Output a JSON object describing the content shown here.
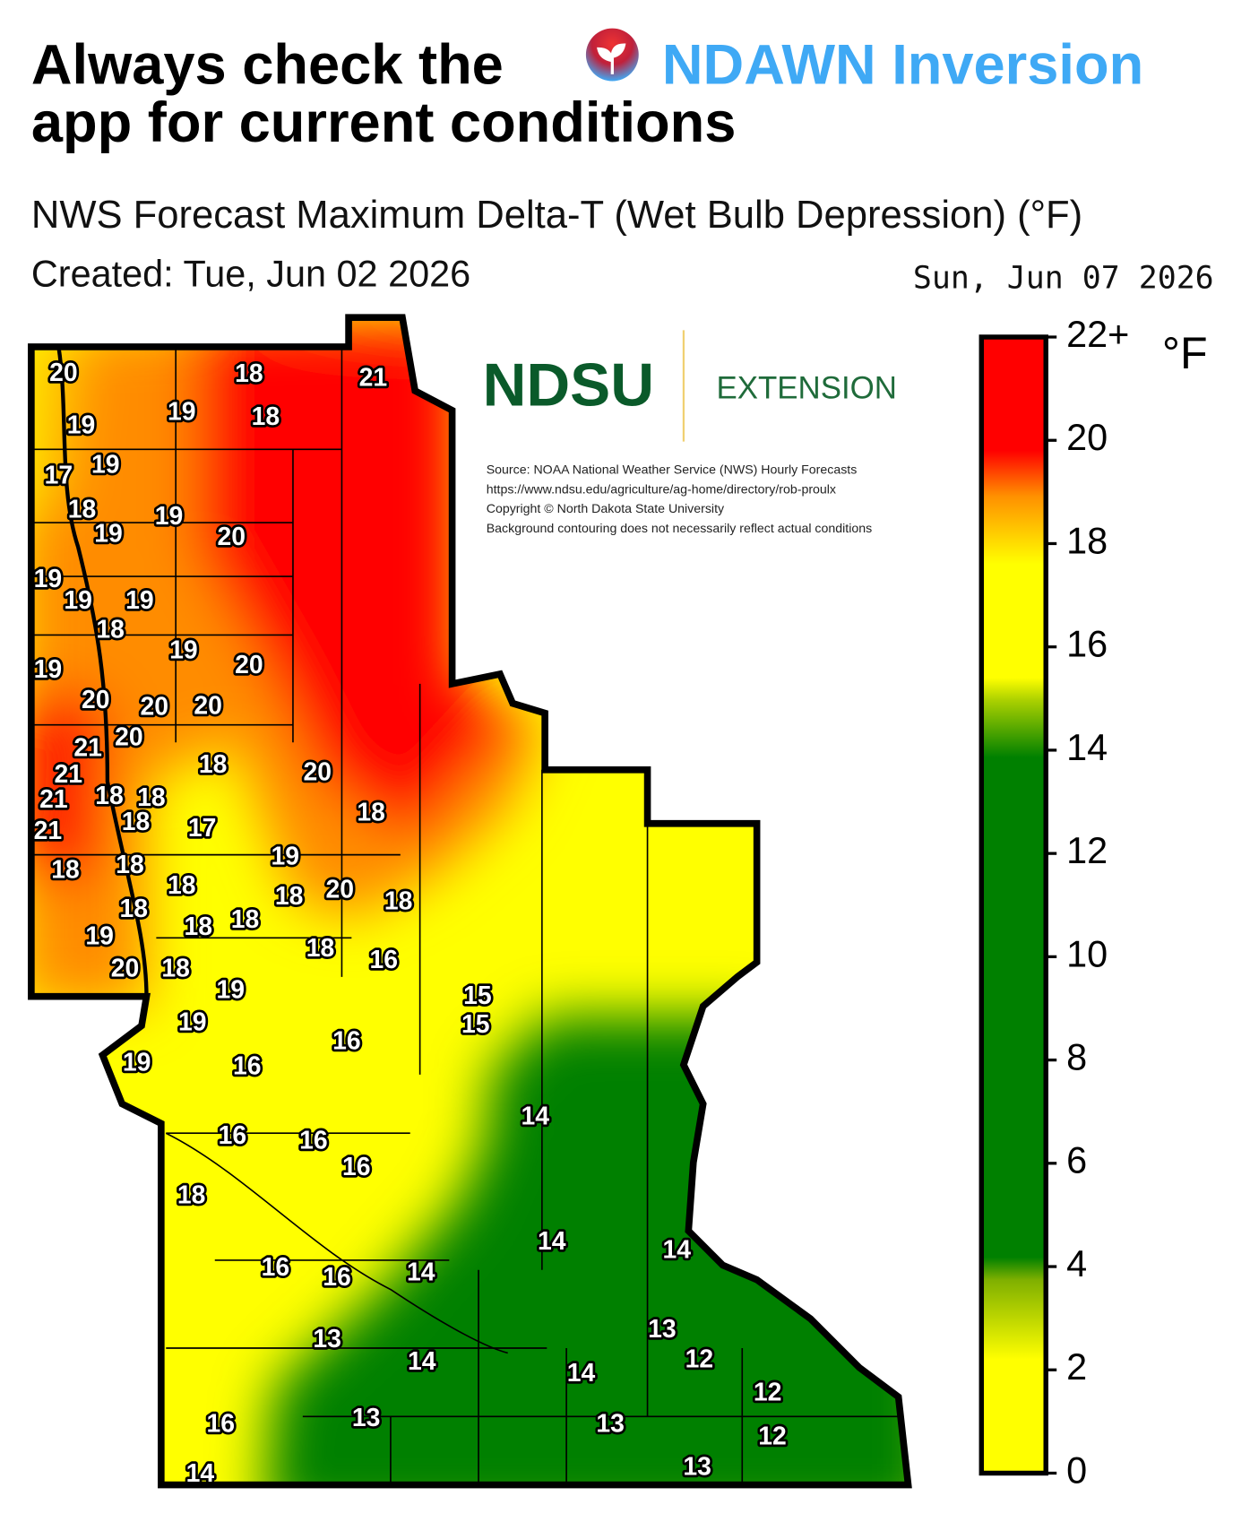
{
  "header": {
    "title_before": "Always check the",
    "title_link": "NDAWN Inversion",
    "title_after": "app for current conditions"
  },
  "subtitle": "NWS Forecast Maximum Delta-T (Wet Bulb Depression) (°F)",
  "created": "Created: Tue, Jun 02 2026",
  "forecast_date": "Sun, Jun 07 2026",
  "logo": {
    "name": "NDSU",
    "unit": "EXTENSION"
  },
  "source_notes": [
    "Source: NOAA National Weather Service (NWS) Hourly Forecasts",
    "https://www.ndsu.edu/agriculture/ag-home/directory/rob-proulx",
    "Copyright © North Dakota State University",
    "Background contouring does not necessarily reflect actual conditions"
  ],
  "colorbar": {
    "unit": "°F",
    "range": [
      0,
      22
    ],
    "ticks": [
      0,
      2,
      4,
      6,
      8,
      10,
      12,
      14,
      16,
      18,
      20,
      {
        "value": 22,
        "label": "22+"
      }
    ]
  },
  "stations": {
    "values": [
      20,
      18,
      21,
      19,
      19,
      18,
      17,
      19,
      18,
      19,
      19,
      20,
      19,
      19,
      19,
      18,
      19,
      19,
      20,
      20,
      20,
      20,
      20,
      21,
      21,
      21,
      18,
      18,
      18,
      21,
      18,
      20,
      18,
      17,
      18,
      18,
      19,
      18,
      18,
      20,
      18,
      18,
      18,
      18,
      19,
      18,
      16,
      20,
      18,
      19,
      15,
      19,
      15,
      16,
      19,
      16,
      14,
      16,
      16,
      16,
      18,
      14,
      14,
      16,
      16,
      14,
      13,
      13,
      12,
      14,
      14,
      12,
      13,
      13,
      16,
      12,
      14,
      13
    ]
  }
}
